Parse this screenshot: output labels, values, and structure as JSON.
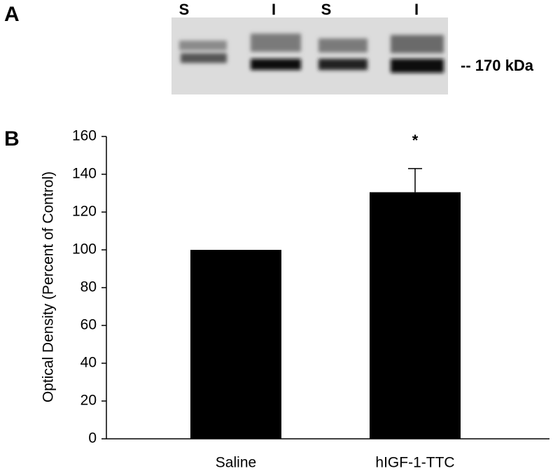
{
  "blot": {
    "label": "A",
    "lanes": [
      "S",
      "I",
      "S",
      "I"
    ],
    "marker": "-- 170 kDa"
  },
  "chart_data": {
    "type": "bar",
    "label": "B",
    "ylabel": "Optical Density (Percent of Control)",
    "categories": [
      "Saline",
      "hIGF-1-TTC"
    ],
    "values": [
      100,
      130.5
    ],
    "errors": [
      null,
      12.5
    ],
    "annotations": [
      null,
      "*"
    ],
    "color": "#000000",
    "ylim": [
      0,
      160
    ],
    "yticks": [
      0,
      20,
      40,
      60,
      80,
      100,
      120,
      140,
      160
    ]
  }
}
